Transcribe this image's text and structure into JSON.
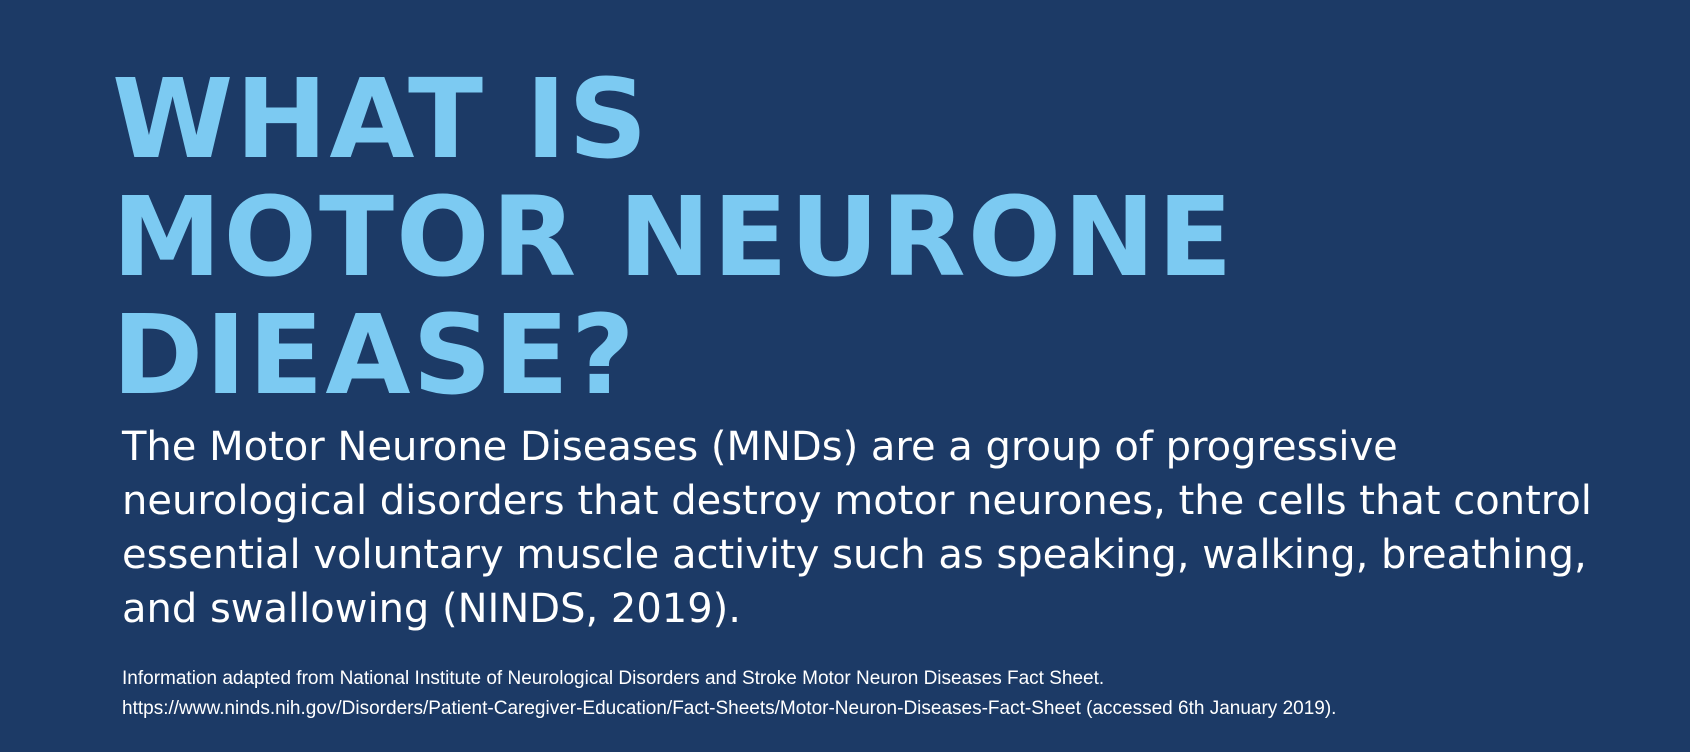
{
  "heading": {
    "line1": "WHAT IS",
    "line2": "MOTOR NEURONE",
    "line3": "DIEASE?"
  },
  "body": {
    "text": "The Motor Neurone Diseases (MNDs) are a group of progressive neurological disorders that destroy motor neurones, the cells that control essential voluntary muscle activity such as speaking, walking, breathing, and swallowing (NINDS, 2019)."
  },
  "source": {
    "line1": "Information adapted from National Institute of Neurological Disorders and Stroke Motor Neuron Diseases Fact Sheet.",
    "line2": "https://www.ninds.nih.gov/Disorders/Patient-Caregiver-Education/Fact-Sheets/Motor-Neuron-Diseases-Fact-Sheet (accessed 6th January 2019)."
  },
  "colors": {
    "background": "#1c3a66",
    "heading": "#7ccaf2",
    "text": "#ffffff"
  }
}
